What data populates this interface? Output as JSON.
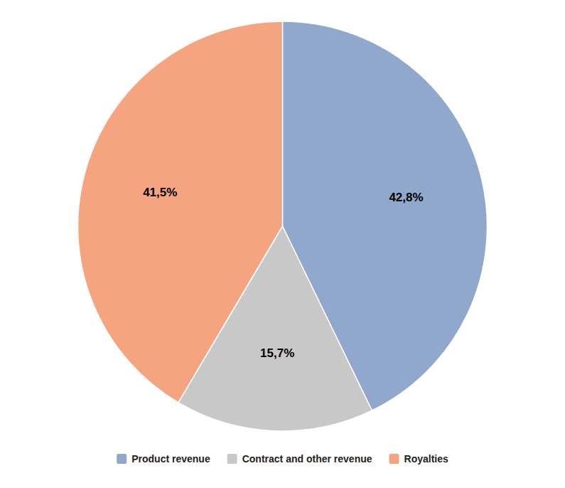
{
  "chart_data": {
    "type": "pie",
    "categories": [
      "Product revenue",
      "Contract and other revenue",
      "Royalties"
    ],
    "values": [
      42.8,
      15.7,
      41.5
    ],
    "value_labels": [
      "42,8%",
      "15,7%",
      "41,5%"
    ],
    "colors": [
      "#8fa8cc",
      "#c8c8c8",
      "#f4a580"
    ],
    "data_labels": true,
    "legend": "bottom"
  }
}
